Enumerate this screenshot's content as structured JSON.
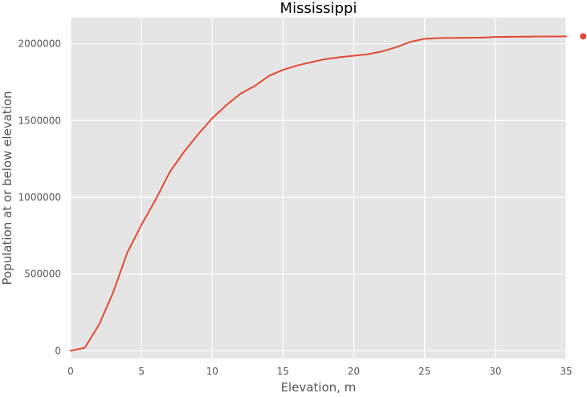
{
  "chart_data": {
    "type": "line",
    "title": "Mississippi",
    "xlabel": "Elevation, m",
    "ylabel": "Population at or below elevation",
    "xlim": [
      0,
      35
    ],
    "ylim": [
      -50000,
      2170000
    ],
    "xticks": [
      0,
      5,
      10,
      15,
      20,
      25,
      30,
      35
    ],
    "xtick_labels": [
      "0",
      "5",
      "10",
      "15",
      "20",
      "25",
      "30",
      "35"
    ],
    "yticks": [
      0,
      500000,
      1000000,
      1500000,
      2000000
    ],
    "ytick_labels": [
      "0",
      "500000",
      "1000000",
      "1500000",
      "2000000"
    ],
    "grid": true,
    "legend": "none",
    "colors": {
      "plot_background": "#e5e5e5",
      "grid": "#ffffff",
      "line": "#e24a33"
    },
    "series": [
      {
        "x": [
          0,
          1,
          2,
          3,
          4,
          5,
          6,
          7,
          8,
          9,
          10,
          11,
          12,
          13,
          14,
          15,
          16,
          17,
          18,
          19,
          20,
          21,
          22,
          23,
          24,
          25,
          26,
          27,
          28,
          29,
          30,
          31,
          32,
          33,
          34,
          35
        ],
        "values": [
          0,
          20000,
          170000,
          380000,
          640000,
          820000,
          985000,
          1165000,
          1295000,
          1410000,
          1515000,
          1600000,
          1675000,
          1725000,
          1790000,
          1830000,
          1858000,
          1880000,
          1900000,
          1912000,
          1922000,
          1932000,
          1950000,
          1978000,
          2012000,
          2032000,
          2037000,
          2038000,
          2039000,
          2040000,
          2044000,
          2045000,
          2046000,
          2047000,
          2047000,
          2048000
        ]
      }
    ],
    "marker": {
      "x": 36.2,
      "y": 2048000
    }
  }
}
